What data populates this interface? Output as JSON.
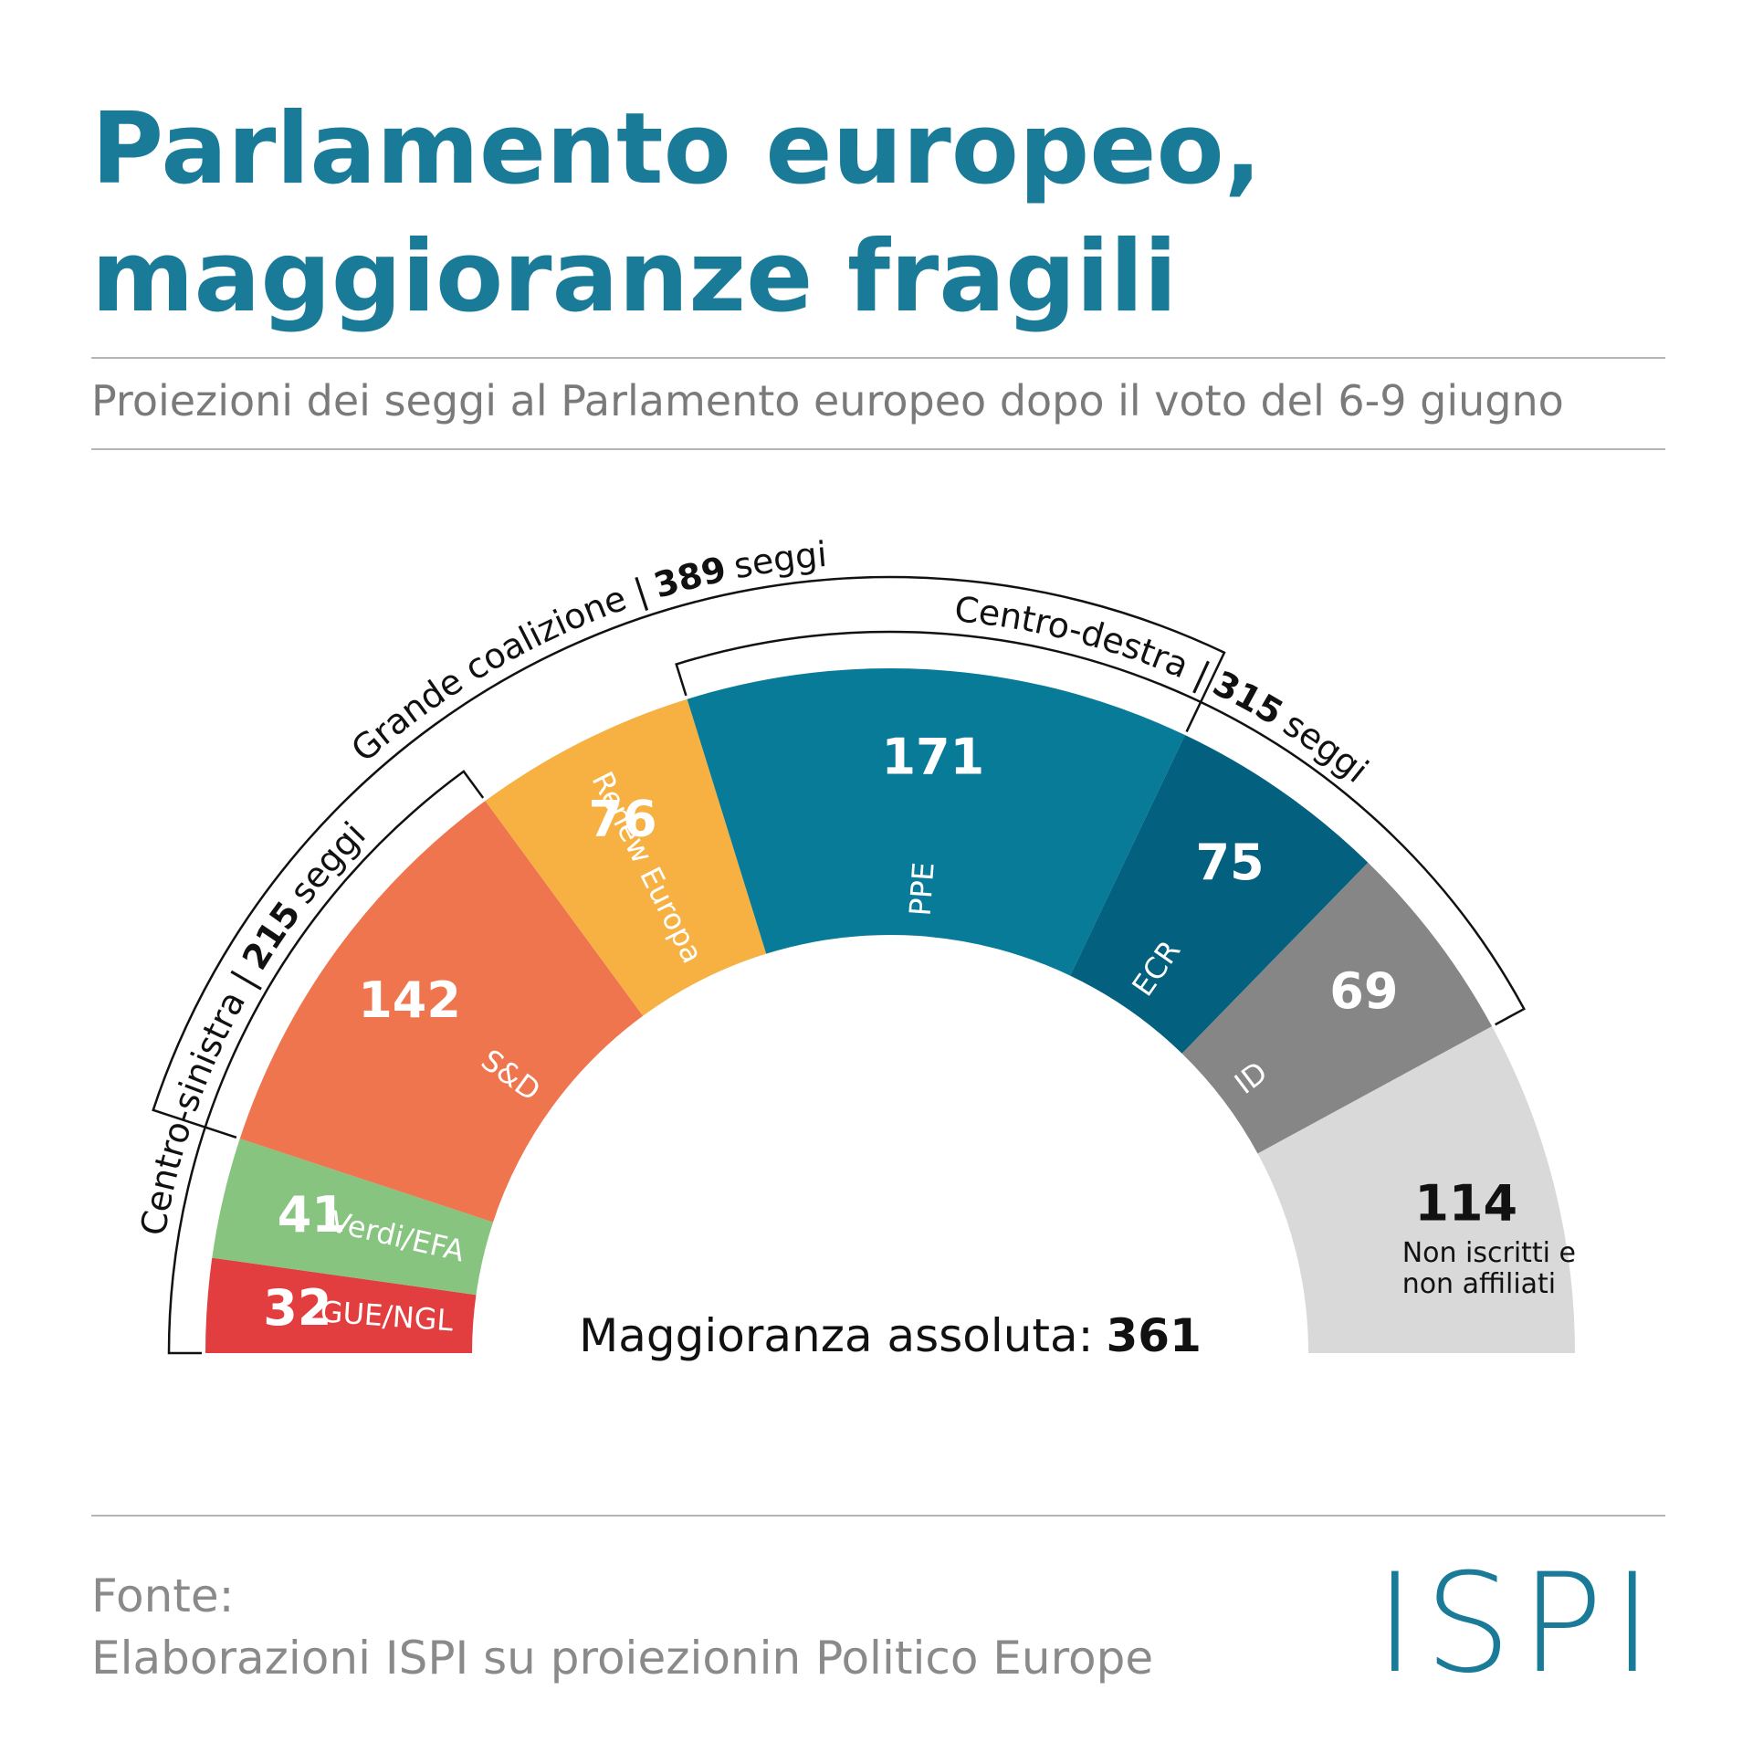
{
  "chart_data": {
    "type": "parliament",
    "title": [
      "Parlamento europeo,",
      "maggioranze fragili"
    ],
    "subtitle": "Proiezioni dei seggi al Parlamento europeo dopo il voto del 6-9 giugno",
    "categories": [
      "GUE/NGL",
      "Verdi/EFA",
      "S&D",
      "Renew Europa",
      "PPE",
      "ECR",
      "ID",
      "Non iscritti e non affiliati"
    ],
    "values": [
      32,
      41,
      142,
      76,
      171,
      75,
      69,
      114
    ],
    "colors": [
      "#e23d3f",
      "#86c47f",
      "#ef754f",
      "#f6b142",
      "#087b98",
      "#03617f",
      "#868686",
      "#d9d9d9"
    ],
    "label_colors": [
      "#ffffff",
      "#ffffff",
      "#ffffff",
      "#ffffff",
      "#ffffff",
      "#ffffff",
      "#ffffff",
      "#111111"
    ],
    "coalitions": [
      {
        "name": "Centro-sinistra |",
        "value": 215,
        "unit": "seggi",
        "members": [
          "GUE/NGL",
          "Verdi/EFA",
          "S&D"
        ]
      },
      {
        "name": "Grande coalizione |",
        "value": 389,
        "unit": "seggi",
        "members": [
          "S&D",
          "Renew Europa",
          "PPE"
        ]
      },
      {
        "name": "Centro-destra |",
        "value": 315,
        "unit": "seggi",
        "members": [
          "PPE",
          "ECR",
          "ID"
        ]
      }
    ],
    "majority": {
      "label": "Maggioranza assoluta:",
      "value": 361
    },
    "source": [
      "Fonte:",
      "Elaborazioni ISPI su proiezionin Politico Europe"
    ],
    "logo": "ISPI"
  }
}
